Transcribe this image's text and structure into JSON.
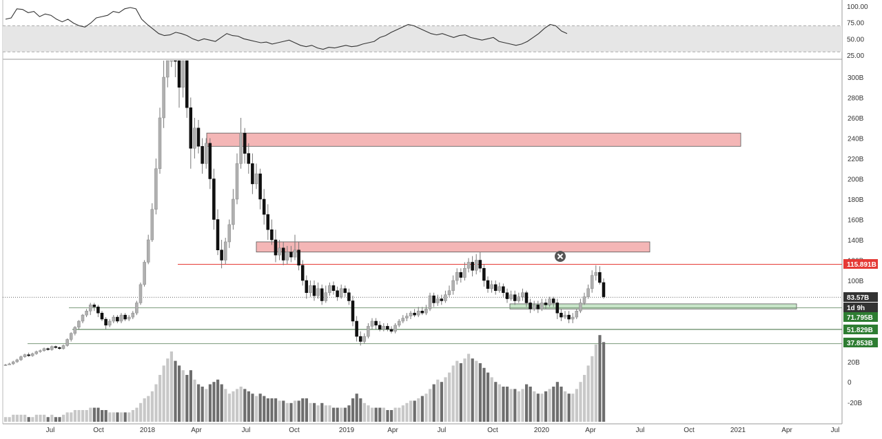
{
  "chart_data": {
    "type": "candlestick",
    "title": "",
    "price_axis": {
      "ticks": [
        "300B",
        "280B",
        "260B",
        "240B",
        "220B",
        "200B",
        "180B",
        "160B",
        "140B",
        "120B",
        "100B"
      ],
      "lower_ticks": [
        "20B",
        "0",
        "-20B"
      ],
      "range": [
        0,
        320
      ]
    },
    "oscillator_axis": {
      "ticks": [
        "100.00",
        "75.00",
        "50.00",
        "25.00"
      ],
      "band": [
        30,
        70
      ]
    },
    "time_axis": [
      "Jul",
      "Oct",
      "2018",
      "Apr",
      "Jul",
      "Oct",
      "2019",
      "Apr",
      "Jul",
      "Oct",
      "2020",
      "Apr",
      "Jul",
      "Oct",
      "2021",
      "Apr",
      "Jul"
    ],
    "price_labels": [
      {
        "text": "115.891B",
        "color": "#e53935"
      },
      {
        "text": "83.57B",
        "color": "#333333"
      },
      {
        "text": "1d 9h",
        "color": "#333333"
      },
      {
        "text": "71.795B",
        "color": "#2e7d32"
      },
      {
        "text": "51.829B",
        "color": "#2e7d32"
      },
      {
        "text": "37.853B",
        "color": "#2e7d32"
      }
    ],
    "levels": [
      {
        "name": "resistance",
        "value": 115.891,
        "color": "#e53935"
      },
      {
        "name": "support-1",
        "value": 71.795,
        "color": "#2e7d32"
      },
      {
        "name": "support-2",
        "value": 51.829,
        "color": "#2e7d32"
      },
      {
        "name": "support-3",
        "value": 37.853,
        "color": "#2e7d32"
      },
      {
        "name": "current",
        "value": 83.57,
        "color": "#333333"
      }
    ],
    "zones": [
      {
        "kind": "supply",
        "from": "2018-04",
        "to": "2020-12",
        "low": 232,
        "high": 245,
        "color": "#f4b6b6"
      },
      {
        "kind": "supply",
        "from": "2018-08",
        "to": "2020-06",
        "low": 128,
        "high": 138,
        "color": "#f4b6b6"
      },
      {
        "kind": "demand",
        "from": "2019-11",
        "to": "2020-11",
        "low": 72,
        "high": 77,
        "color": "#c8e6c9"
      }
    ],
    "candles": [
      [
        17,
        17,
        16,
        18,
        2
      ],
      [
        17,
        18,
        17,
        19,
        2
      ],
      [
        18,
        20,
        17,
        21,
        3
      ],
      [
        20,
        22,
        19,
        23,
        3
      ],
      [
        22,
        25,
        21,
        26,
        3
      ],
      [
        25,
        27,
        24,
        28,
        3
      ],
      [
        27,
        26,
        25,
        29,
        2
      ],
      [
        26,
        28,
        25,
        29,
        2
      ],
      [
        28,
        30,
        27,
        31,
        3
      ],
      [
        30,
        31,
        29,
        32,
        3
      ],
      [
        31,
        33,
        30,
        34,
        3
      ],
      [
        33,
        32,
        31,
        34,
        2
      ],
      [
        32,
        35,
        31,
        36,
        3
      ],
      [
        35,
        34,
        33,
        36,
        2
      ],
      [
        34,
        33,
        32,
        35,
        2
      ],
      [
        33,
        36,
        32,
        37,
        3
      ],
      [
        36,
        42,
        35,
        43,
        4
      ],
      [
        42,
        48,
        40,
        49,
        4
      ],
      [
        48,
        54,
        46,
        55,
        5
      ],
      [
        54,
        60,
        52,
        61,
        5
      ],
      [
        60,
        66,
        58,
        67,
        5
      ],
      [
        66,
        70,
        64,
        72,
        5
      ],
      [
        70,
        76,
        66,
        78,
        6
      ],
      [
        76,
        74,
        70,
        78,
        6
      ],
      [
        74,
        68,
        64,
        76,
        6
      ],
      [
        68,
        62,
        60,
        70,
        5
      ],
      [
        62,
        56,
        52,
        64,
        5
      ],
      [
        56,
        60,
        54,
        62,
        4
      ],
      [
        60,
        64,
        58,
        66,
        4
      ],
      [
        64,
        60,
        58,
        66,
        4
      ],
      [
        60,
        66,
        58,
        68,
        4
      ],
      [
        66,
        62,
        60,
        68,
        4
      ],
      [
        62,
        64,
        60,
        66,
        4
      ],
      [
        64,
        68,
        62,
        70,
        5
      ],
      [
        68,
        78,
        66,
        80,
        6
      ],
      [
        78,
        96,
        76,
        98,
        8
      ],
      [
        96,
        118,
        94,
        120,
        10
      ],
      [
        118,
        140,
        116,
        145,
        11
      ],
      [
        140,
        170,
        138,
        176,
        13
      ],
      [
        170,
        210,
        165,
        220,
        16
      ],
      [
        210,
        260,
        205,
        270,
        20
      ],
      [
        260,
        300,
        250,
        320,
        24
      ],
      [
        300,
        330,
        290,
        340,
        27
      ],
      [
        330,
        350,
        310,
        360,
        30
      ],
      [
        350,
        330,
        300,
        360,
        26
      ],
      [
        330,
        290,
        270,
        340,
        24
      ],
      [
        290,
        320,
        280,
        330,
        22
      ],
      [
        320,
        270,
        260,
        330,
        20
      ],
      [
        270,
        230,
        210,
        280,
        22
      ],
      [
        230,
        250,
        220,
        260,
        18
      ],
      [
        250,
        232,
        225,
        258,
        16
      ],
      [
        232,
        215,
        205,
        240,
        15
      ],
      [
        215,
        235,
        210,
        240,
        14
      ],
      [
        235,
        200,
        190,
        240,
        16
      ],
      [
        200,
        160,
        150,
        210,
        17
      ],
      [
        160,
        130,
        125,
        170,
        18
      ],
      [
        130,
        120,
        112,
        140,
        16
      ],
      [
        120,
        138,
        116,
        142,
        14
      ],
      [
        138,
        155,
        132,
        160,
        12
      ],
      [
        155,
        180,
        150,
        190,
        13
      ],
      [
        180,
        215,
        175,
        225,
        14
      ],
      [
        215,
        245,
        210,
        260,
        15
      ],
      [
        245,
        225,
        215,
        250,
        14
      ],
      [
        225,
        215,
        205,
        235,
        13
      ],
      [
        215,
        195,
        185,
        225,
        12
      ],
      [
        195,
        205,
        190,
        215,
        11
      ],
      [
        205,
        180,
        170,
        210,
        12
      ],
      [
        180,
        165,
        155,
        190,
        11
      ],
      [
        165,
        150,
        140,
        175,
        10
      ],
      [
        150,
        140,
        135,
        160,
        10
      ],
      [
        140,
        125,
        118,
        150,
        10
      ],
      [
        125,
        132,
        120,
        140,
        9
      ],
      [
        132,
        120,
        115,
        138,
        9
      ],
      [
        120,
        128,
        116,
        134,
        8
      ],
      [
        128,
        123,
        118,
        134,
        8
      ],
      [
        123,
        130,
        120,
        145,
        9
      ],
      [
        130,
        115,
        110,
        138,
        9
      ],
      [
        115,
        100,
        95,
        120,
        10
      ],
      [
        100,
        88,
        82,
        105,
        10
      ],
      [
        88,
        95,
        84,
        100,
        8
      ],
      [
        95,
        85,
        80,
        100,
        8
      ],
      [
        85,
        92,
        82,
        98,
        7
      ],
      [
        92,
        80,
        76,
        96,
        8
      ],
      [
        80,
        88,
        78,
        95,
        7
      ],
      [
        88,
        95,
        85,
        98,
        7
      ],
      [
        95,
        90,
        86,
        99,
        6
      ],
      [
        90,
        84,
        80,
        94,
        6
      ],
      [
        84,
        92,
        82,
        96,
        6
      ],
      [
        92,
        88,
        84,
        95,
        6
      ],
      [
        88,
        80,
        76,
        92,
        7
      ],
      [
        80,
        60,
        55,
        85,
        10
      ],
      [
        60,
        45,
        40,
        65,
        12
      ],
      [
        45,
        40,
        36,
        50,
        10
      ],
      [
        40,
        45,
        38,
        48,
        8
      ],
      [
        45,
        55,
        43,
        58,
        7
      ],
      [
        55,
        60,
        52,
        63,
        6
      ],
      [
        60,
        56,
        52,
        63,
        6
      ],
      [
        56,
        52,
        50,
        60,
        6
      ],
      [
        52,
        55,
        50,
        58,
        6
      ],
      [
        55,
        52,
        50,
        58,
        5
      ],
      [
        52,
        50,
        48,
        55,
        5
      ],
      [
        50,
        56,
        48,
        58,
        6
      ],
      [
        56,
        60,
        54,
        62,
        6
      ],
      [
        60,
        63,
        58,
        66,
        7
      ],
      [
        63,
        65,
        60,
        68,
        8
      ],
      [
        65,
        68,
        62,
        70,
        9
      ],
      [
        68,
        66,
        64,
        72,
        9
      ],
      [
        66,
        70,
        64,
        74,
        10
      ],
      [
        70,
        68,
        66,
        74,
        11
      ],
      [
        68,
        72,
        66,
        76,
        12
      ],
      [
        72,
        85,
        70,
        88,
        14
      ],
      [
        85,
        78,
        74,
        88,
        16
      ],
      [
        78,
        82,
        75,
        86,
        18
      ],
      [
        82,
        80,
        76,
        86,
        17
      ],
      [
        80,
        86,
        78,
        90,
        19
      ],
      [
        86,
        90,
        84,
        95,
        21
      ],
      [
        90,
        100,
        86,
        105,
        24
      ],
      [
        100,
        108,
        96,
        112,
        26
      ],
      [
        108,
        103,
        98,
        112,
        25
      ],
      [
        103,
        112,
        100,
        118,
        27
      ],
      [
        112,
        118,
        108,
        122,
        29
      ],
      [
        118,
        110,
        104,
        124,
        27
      ],
      [
        110,
        120,
        106,
        126,
        26
      ],
      [
        120,
        112,
        108,
        128,
        25
      ],
      [
        112,
        100,
        94,
        116,
        23
      ],
      [
        100,
        92,
        88,
        104,
        21
      ],
      [
        92,
        96,
        88,
        100,
        19
      ],
      [
        96,
        90,
        86,
        100,
        17
      ],
      [
        90,
        94,
        88,
        98,
        16
      ],
      [
        94,
        88,
        84,
        97,
        15
      ],
      [
        88,
        82,
        78,
        92,
        15
      ],
      [
        82,
        86,
        80,
        90,
        14
      ],
      [
        86,
        80,
        76,
        90,
        14
      ],
      [
        80,
        84,
        78,
        88,
        13
      ],
      [
        84,
        88,
        80,
        92,
        14
      ],
      [
        88,
        78,
        74,
        90,
        16
      ],
      [
        78,
        72,
        68,
        82,
        15
      ],
      [
        72,
        76,
        70,
        80,
        13
      ],
      [
        76,
        72,
        68,
        80,
        12
      ],
      [
        72,
        78,
        70,
        82,
        12
      ],
      [
        78,
        76,
        72,
        82,
        13
      ],
      [
        76,
        82,
        74,
        84,
        14
      ],
      [
        82,
        78,
        74,
        84,
        15
      ],
      [
        78,
        68,
        62,
        82,
        17
      ],
      [
        68,
        64,
        60,
        72,
        15
      ],
      [
        64,
        66,
        62,
        70,
        13
      ],
      [
        66,
        62,
        58,
        70,
        12
      ],
      [
        62,
        64,
        58,
        68,
        12
      ],
      [
        64,
        70,
        62,
        72,
        14
      ],
      [
        70,
        78,
        68,
        82,
        17
      ],
      [
        78,
        84,
        76,
        88,
        20
      ],
      [
        84,
        92,
        82,
        96,
        24
      ],
      [
        92,
        105,
        88,
        110,
        28
      ],
      [
        105,
        108,
        100,
        115,
        33
      ],
      [
        108,
        98,
        96,
        114,
        37
      ],
      [
        98,
        84,
        82,
        102,
        34
      ]
    ],
    "oscillator": [
      80,
      82,
      96,
      95,
      90,
      92,
      84,
      88,
      86,
      80,
      76,
      80,
      74,
      70,
      68,
      74,
      82,
      84,
      86,
      92,
      90,
      96,
      98,
      96,
      80,
      72,
      65,
      58,
      55,
      56,
      60,
      58,
      55,
      50,
      47,
      50,
      48,
      46,
      52,
      58,
      55,
      54,
      50,
      48,
      46,
      44,
      45,
      42,
      44,
      46,
      48,
      44,
      40,
      38,
      40,
      36,
      34,
      37,
      36,
      38,
      40,
      38,
      39,
      42,
      44,
      46,
      52,
      55,
      60,
      64,
      68,
      72,
      70,
      66,
      62,
      58,
      56,
      58,
      55,
      52,
      55,
      56,
      52,
      50,
      48,
      50,
      52,
      46,
      44,
      42,
      40,
      42,
      46,
      52,
      58,
      66,
      72,
      70,
      62,
      58
    ]
  }
}
